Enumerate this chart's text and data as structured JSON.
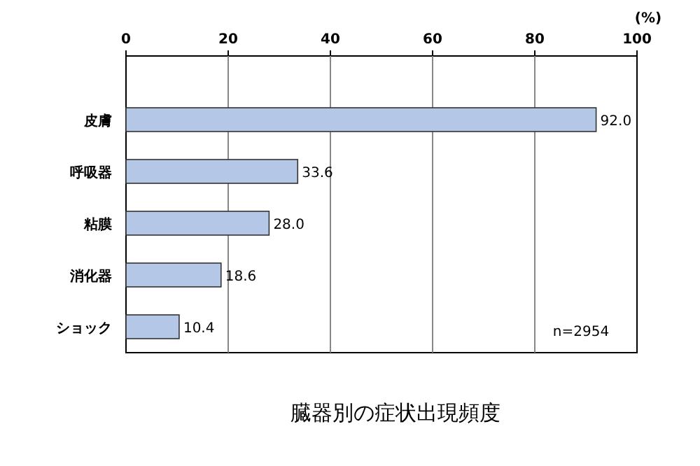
{
  "chart_data": {
    "type": "bar",
    "orientation": "horizontal",
    "title": "臓器別の症状出現頻度",
    "xlabel": "(%)",
    "categories": [
      "皮膚",
      "呼吸器",
      "粘膜",
      "消化器",
      "ショック"
    ],
    "values": [
      92.0,
      33.6,
      28.0,
      18.6,
      10.4
    ],
    "value_labels": [
      "92.0",
      "33.6",
      "28.0",
      "18.6",
      "10.4"
    ],
    "color": "#b4c7e7",
    "xlim": [
      0,
      100
    ],
    "xticks": [
      0,
      20,
      40,
      60,
      80,
      100
    ],
    "grid": "x",
    "annotations": [
      {
        "text": "n=2954"
      }
    ]
  }
}
